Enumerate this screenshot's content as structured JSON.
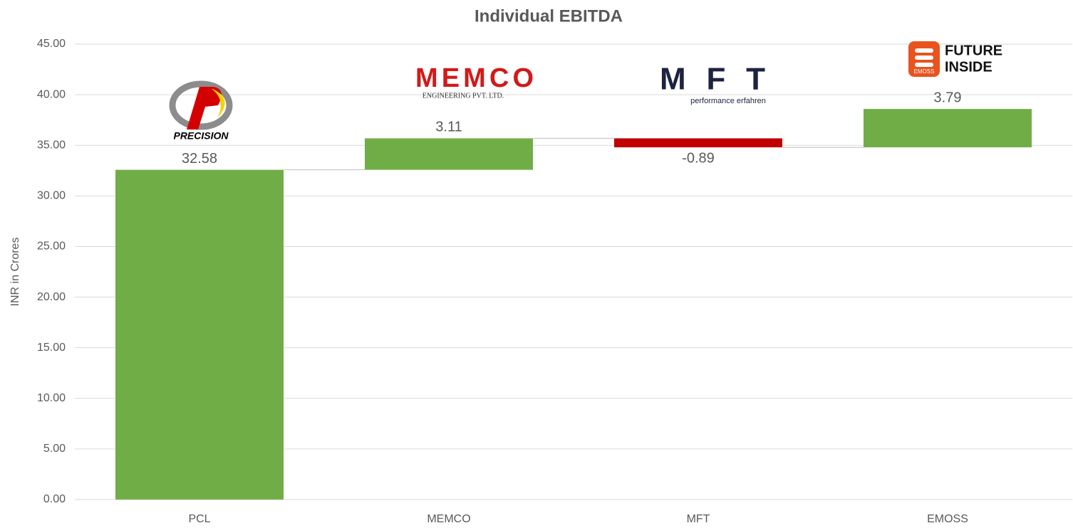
{
  "chart_data": {
    "type": "waterfall",
    "title": "Individual EBITDA",
    "y_label": "INR in Crores",
    "categories": [
      "PCL",
      "MEMCO",
      "MFT",
      "EMOSS"
    ],
    "values": [
      32.58,
      3.11,
      -0.89,
      3.79
    ],
    "increase_color": "#70ad47",
    "decrease_color": "#c00000",
    "ylim": [
      0,
      45
    ],
    "yticks": [
      {
        "value": 0,
        "label": "0.00"
      },
      {
        "value": 5,
        "label": "5.00"
      },
      {
        "value": 10,
        "label": "10.00"
      },
      {
        "value": 15,
        "label": "15.00"
      },
      {
        "value": 20,
        "label": "20.00"
      },
      {
        "value": 25,
        "label": "25.00"
      },
      {
        "value": 30,
        "label": "30.00"
      },
      {
        "value": 35,
        "label": "35.00"
      },
      {
        "value": 40,
        "label": "40.00"
      },
      {
        "value": 45,
        "label": "45.00"
      }
    ],
    "grid": true,
    "logos": [
      {
        "lines": [
          "PRECISION"
        ]
      },
      {
        "lines": [
          "MEMCO",
          "ENGINEERING PVT. LTD."
        ]
      },
      {
        "lines": [
          "MFT",
          "performance erfahren"
        ]
      },
      {
        "lines": [
          "FUTURE",
          "INSIDE"
        ],
        "badge": "EMOSS"
      }
    ]
  }
}
